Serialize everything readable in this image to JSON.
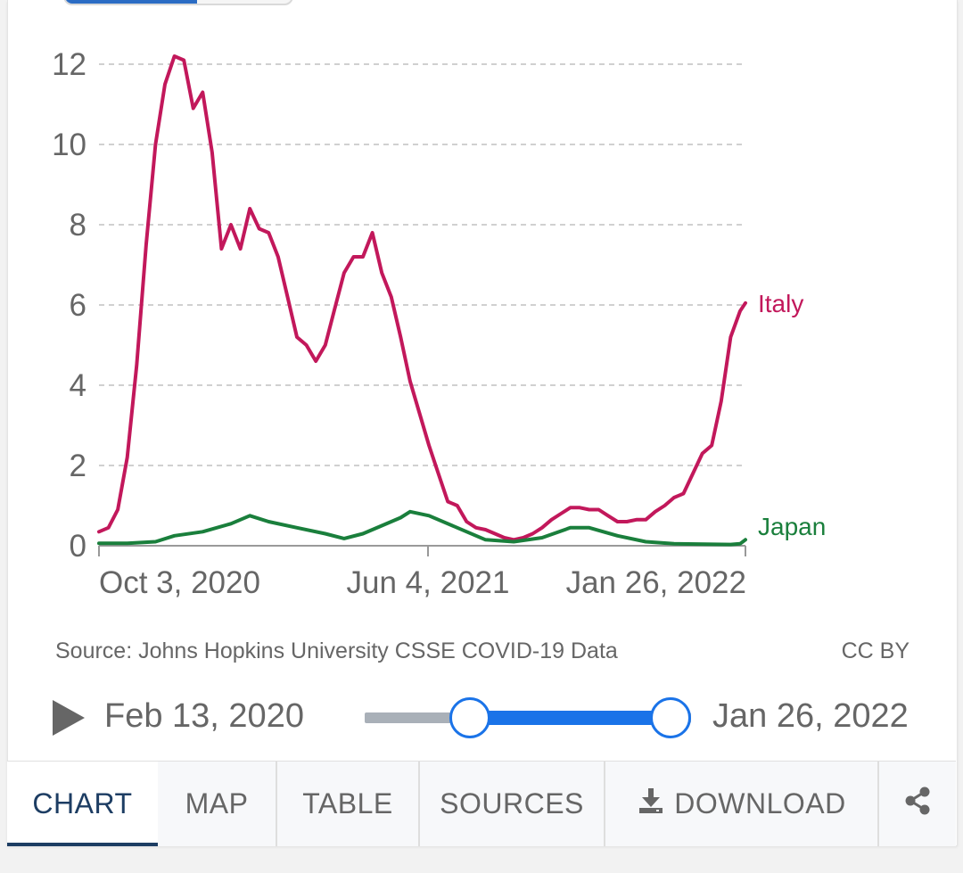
{
  "chart_data": {
    "type": "line",
    "title": "",
    "xlabel": "",
    "ylabel": "",
    "ylim": [
      0,
      12
    ],
    "yticks": [
      0,
      2,
      4,
      6,
      8,
      10,
      12
    ],
    "yticklabels": [
      "0",
      "2",
      "4",
      "6",
      "8",
      "10",
      "12"
    ],
    "xlim": [
      "2020-10-03",
      "2022-01-26"
    ],
    "xticks": [
      "Oct 3, 2020",
      "Jun 4, 2021",
      "Jan 26, 2022"
    ],
    "grid": true,
    "legend": "inline labels at line ends",
    "series": [
      {
        "name": "Italy",
        "color": "#c2185b",
        "points": [
          [
            "2020-10-03",
            0.35
          ],
          [
            "2020-10-10",
            0.45
          ],
          [
            "2020-10-17",
            0.9
          ],
          [
            "2020-10-24",
            2.2
          ],
          [
            "2020-10-31",
            4.5
          ],
          [
            "2020-11-07",
            7.5
          ],
          [
            "2020-11-14",
            10.0
          ],
          [
            "2020-11-21",
            11.5
          ],
          [
            "2020-11-28",
            12.2
          ],
          [
            "2020-12-05",
            12.1
          ],
          [
            "2020-12-12",
            10.9
          ],
          [
            "2020-12-19",
            11.3
          ],
          [
            "2020-12-26",
            9.8
          ],
          [
            "2021-01-02",
            7.4
          ],
          [
            "2021-01-09",
            8.0
          ],
          [
            "2021-01-16",
            7.4
          ],
          [
            "2021-01-23",
            8.4
          ],
          [
            "2021-01-30",
            7.9
          ],
          [
            "2021-02-06",
            7.8
          ],
          [
            "2021-02-13",
            7.2
          ],
          [
            "2021-02-20",
            6.2
          ],
          [
            "2021-02-27",
            5.2
          ],
          [
            "2021-03-06",
            5.0
          ],
          [
            "2021-03-13",
            4.6
          ],
          [
            "2021-03-20",
            5.0
          ],
          [
            "2021-03-27",
            5.9
          ],
          [
            "2021-04-03",
            6.8
          ],
          [
            "2021-04-10",
            7.2
          ],
          [
            "2021-04-17",
            7.2
          ],
          [
            "2021-04-24",
            7.8
          ],
          [
            "2021-05-01",
            6.8
          ],
          [
            "2021-05-08",
            6.2
          ],
          [
            "2021-05-15",
            5.2
          ],
          [
            "2021-05-22",
            4.1
          ],
          [
            "2021-05-29",
            3.3
          ],
          [
            "2021-06-05",
            2.5
          ],
          [
            "2021-06-12",
            1.8
          ],
          [
            "2021-06-19",
            1.1
          ],
          [
            "2021-06-26",
            1.0
          ],
          [
            "2021-07-03",
            0.6
          ],
          [
            "2021-07-10",
            0.45
          ],
          [
            "2021-07-17",
            0.4
          ],
          [
            "2021-07-24",
            0.3
          ],
          [
            "2021-07-31",
            0.2
          ],
          [
            "2021-08-07",
            0.15
          ],
          [
            "2021-08-14",
            0.2
          ],
          [
            "2021-08-21",
            0.3
          ],
          [
            "2021-08-28",
            0.45
          ],
          [
            "2021-09-04",
            0.65
          ],
          [
            "2021-09-11",
            0.8
          ],
          [
            "2021-09-18",
            0.95
          ],
          [
            "2021-09-25",
            0.95
          ],
          [
            "2021-10-02",
            0.9
          ],
          [
            "2021-10-09",
            0.9
          ],
          [
            "2021-10-16",
            0.75
          ],
          [
            "2021-10-23",
            0.6
          ],
          [
            "2021-10-30",
            0.6
          ],
          [
            "2021-11-06",
            0.65
          ],
          [
            "2021-11-13",
            0.65
          ],
          [
            "2021-11-20",
            0.85
          ],
          [
            "2021-11-27",
            1.0
          ],
          [
            "2021-12-04",
            1.2
          ],
          [
            "2021-12-11",
            1.3
          ],
          [
            "2021-12-18",
            1.8
          ],
          [
            "2021-12-25",
            2.3
          ],
          [
            "2022-01-01",
            2.5
          ],
          [
            "2022-01-08",
            3.6
          ],
          [
            "2022-01-15",
            5.2
          ],
          [
            "2022-01-22",
            5.85
          ],
          [
            "2022-01-26",
            6.05
          ]
        ]
      },
      {
        "name": "Japan",
        "color": "#1a7f3c",
        "points": [
          [
            "2020-10-03",
            0.06
          ],
          [
            "2020-10-24",
            0.06
          ],
          [
            "2020-11-14",
            0.1
          ],
          [
            "2020-11-28",
            0.25
          ],
          [
            "2020-12-19",
            0.35
          ],
          [
            "2021-01-09",
            0.55
          ],
          [
            "2021-01-23",
            0.75
          ],
          [
            "2021-02-06",
            0.6
          ],
          [
            "2021-02-27",
            0.45
          ],
          [
            "2021-03-20",
            0.3
          ],
          [
            "2021-04-03",
            0.18
          ],
          [
            "2021-04-17",
            0.3
          ],
          [
            "2021-05-01",
            0.5
          ],
          [
            "2021-05-15",
            0.7
          ],
          [
            "2021-05-22",
            0.85
          ],
          [
            "2021-06-05",
            0.75
          ],
          [
            "2021-06-26",
            0.45
          ],
          [
            "2021-07-17",
            0.15
          ],
          [
            "2021-08-07",
            0.1
          ],
          [
            "2021-08-28",
            0.2
          ],
          [
            "2021-09-18",
            0.45
          ],
          [
            "2021-10-02",
            0.45
          ],
          [
            "2021-10-23",
            0.25
          ],
          [
            "2021-11-13",
            0.1
          ],
          [
            "2021-12-04",
            0.05
          ],
          [
            "2022-01-15",
            0.03
          ],
          [
            "2022-01-22",
            0.05
          ],
          [
            "2022-01-26",
            0.15
          ]
        ]
      }
    ]
  },
  "source_text": "Source: Johns Hopkins University CSSE COVID-19 Data",
  "license_text": "CC BY",
  "timeline": {
    "start_label": "Feb 13, 2020",
    "end_label": "Jan 26, 2022",
    "range_start_fraction": 0.32,
    "range_end_fraction": 0.935
  },
  "icons": {
    "play": "play-icon",
    "download": "download-icon",
    "share": "share-icon"
  },
  "colors": {
    "accent": "#1a73e8",
    "italy": "#c2185b",
    "japan": "#1a7f3c",
    "active_tab": "#1d3d63"
  },
  "tabs": [
    {
      "label": "CHART",
      "active": true
    },
    {
      "label": "MAP",
      "active": false
    },
    {
      "label": "TABLE",
      "active": false
    },
    {
      "label": "SOURCES",
      "active": false
    },
    {
      "label": "DOWNLOAD",
      "active": false
    },
    {
      "label": "",
      "active": false
    }
  ]
}
